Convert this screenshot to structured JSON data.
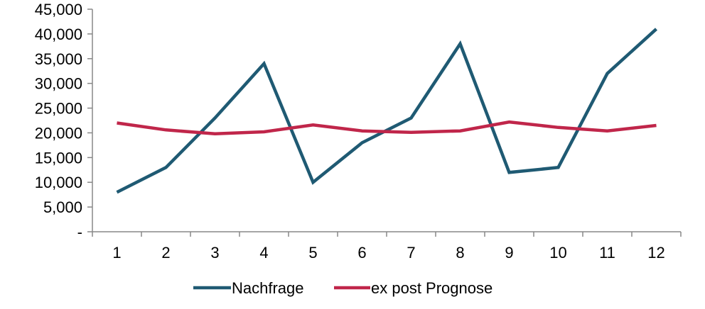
{
  "chart_data": {
    "type": "line",
    "title": "",
    "xlabel": "",
    "ylabel": "",
    "x": [
      1,
      2,
      3,
      4,
      5,
      6,
      7,
      8,
      9,
      10,
      11,
      12
    ],
    "x_tick_labels": [
      "1",
      "2",
      "3",
      "4",
      "5",
      "6",
      "7",
      "8",
      "9",
      "10",
      "11",
      "12"
    ],
    "ylim": [
      0,
      45000
    ],
    "y_ticks": [
      0,
      5000,
      10000,
      15000,
      20000,
      25000,
      30000,
      35000,
      40000,
      45000
    ],
    "y_tick_labels": [
      "-",
      "5,000",
      "10,000",
      "15,000",
      "20,000",
      "25,000",
      "30,000",
      "35,000",
      "40,000",
      "45,000"
    ],
    "grid": false,
    "legend_position": "bottom",
    "series": [
      {
        "name": "Nachfrage",
        "color": "#1F5A73",
        "values": [
          8000,
          13000,
          23000,
          34000,
          10000,
          18000,
          23000,
          38000,
          12000,
          13000,
          32000,
          41000
        ]
      },
      {
        "name": "ex post Prognose",
        "color": "#C0264A",
        "values": [
          22000,
          20600,
          19800,
          20200,
          21600,
          20400,
          20100,
          20400,
          22200,
          21100,
          20400,
          21500
        ]
      }
    ]
  }
}
